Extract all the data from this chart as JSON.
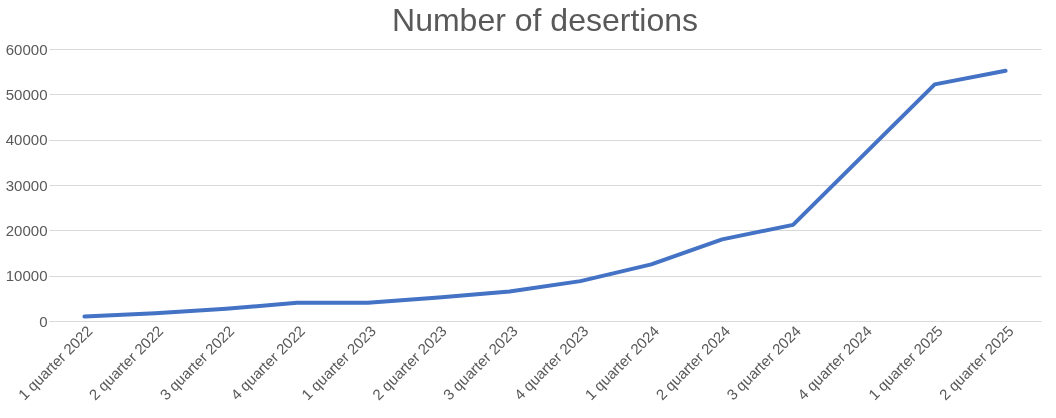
{
  "chart_data": {
    "type": "line",
    "title": "Number of desertions",
    "categories": [
      "1 quarter 2022",
      "2 quarter 2022",
      "3 quarter 2022",
      "4 quarter 2022",
      "1 quarter 2023",
      "2 quarter 2023",
      "3 quarter 2023",
      "4 quarter 2023",
      "1 quarter 2024",
      "2 quarter 2024",
      "3 quarter 2024",
      "4 quarter 2024",
      "1 quarter 2025",
      "2 quarter 2025"
    ],
    "series": [
      {
        "color": "#4472c4",
        "values": [
          1000,
          1700,
          2700,
          4000,
          4000,
          5200,
          6500,
          8800,
          12500,
          18000,
          21200,
          36700,
          52200,
          55200
        ]
      }
    ],
    "ylim": [
      0,
      60000
    ],
    "yticks": [
      0,
      10000,
      20000,
      30000,
      40000,
      50000,
      60000
    ],
    "grid": "y",
    "legend": false,
    "marker": "none",
    "line_style": "solid"
  }
}
